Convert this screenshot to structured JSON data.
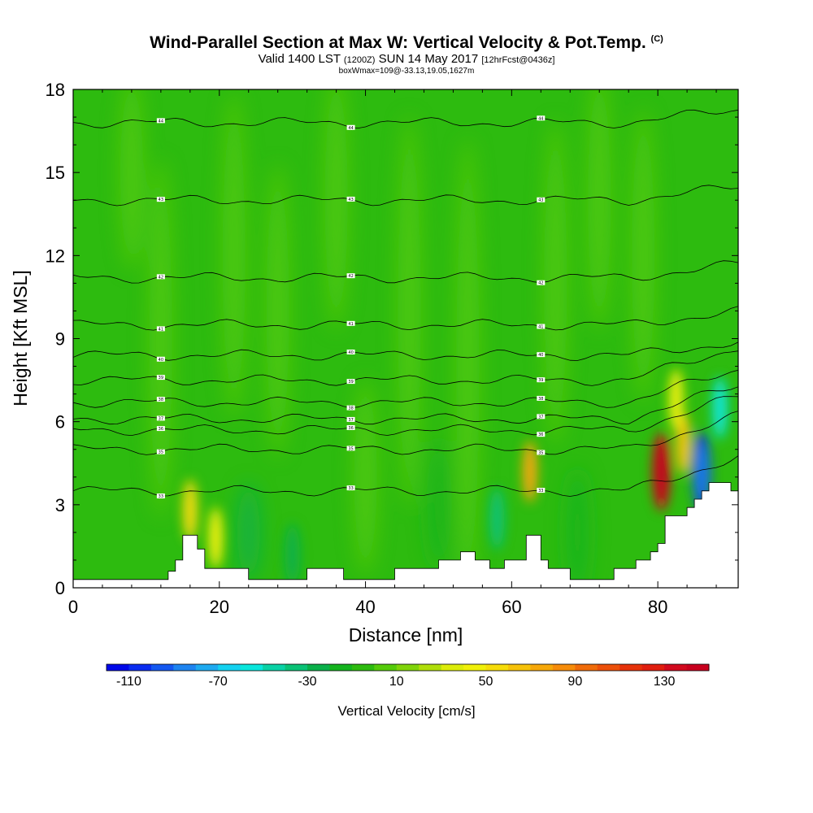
{
  "header": {
    "title": "Wind-Parallel Section at Max W: Vertical Velocity & Pot.Temp.",
    "title_tag": "(C)",
    "subtitle_main_a": "Valid 1400 LST",
    "subtitle_small_a": "(1200Z)",
    "subtitle_main_b": "SUN 14 May 2017",
    "subtitle_small_b": "[12hrFcst@0436z]",
    "line3": "boxWmax=109@-33.13,19.05,1627m"
  },
  "chart_data": {
    "type": "heatmap",
    "xlabel": "Distance [nm]",
    "ylabel": "Height [Kft MSL]",
    "xlim": [
      0,
      91
    ],
    "ylim": [
      0,
      18
    ],
    "x_ticks": [
      0,
      20,
      40,
      60,
      80
    ],
    "y_ticks": [
      0,
      3,
      6,
      9,
      12,
      15,
      18
    ],
    "colorbar": {
      "title": "Vertical Velocity [cm/s]",
      "min": -120,
      "max": 150,
      "step": 10,
      "tick_values": [
        -110,
        -70,
        -30,
        10,
        50,
        90,
        130
      ],
      "colors": [
        "#0008e8",
        "#0a2cf0",
        "#1458f0",
        "#1e84f0",
        "#1eaaf0",
        "#14d2f0",
        "#0ae6dc",
        "#0ad2a6",
        "#0ac276",
        "#0ab04a",
        "#14b41e",
        "#2dbb0f",
        "#55cb0a",
        "#80d40a",
        "#b0de0a",
        "#dcec0a",
        "#f0f00a",
        "#f6dc0a",
        "#f6c20a",
        "#f6a80a",
        "#f68c0a",
        "#f06c0a",
        "#ec500a",
        "#e6320a",
        "#e01e0f",
        "#d20a1e",
        "#c8001e"
      ]
    },
    "terrain_kft": [
      [
        0,
        0.3
      ],
      [
        12,
        0.3
      ],
      [
        13,
        0.3
      ],
      [
        13,
        0.6
      ],
      [
        14,
        0.6
      ],
      [
        14,
        1.0
      ],
      [
        15,
        1.0
      ],
      [
        15,
        1.9
      ],
      [
        17,
        1.9
      ],
      [
        17,
        1.4
      ],
      [
        18,
        1.4
      ],
      [
        18,
        0.7
      ],
      [
        24,
        0.7
      ],
      [
        24,
        0.3
      ],
      [
        32,
        0.3
      ],
      [
        32,
        0.7
      ],
      [
        37,
        0.7
      ],
      [
        37,
        0.3
      ],
      [
        44,
        0.3
      ],
      [
        44,
        0.7
      ],
      [
        50,
        0.7
      ],
      [
        50,
        1.0
      ],
      [
        53,
        1.0
      ],
      [
        53,
        1.3
      ],
      [
        55,
        1.3
      ],
      [
        55,
        1.0
      ],
      [
        57,
        1.0
      ],
      [
        57,
        0.7
      ],
      [
        59,
        0.7
      ],
      [
        59,
        1.0
      ],
      [
        62,
        1.0
      ],
      [
        62,
        1.9
      ],
      [
        64,
        1.9
      ],
      [
        64,
        1.0
      ],
      [
        65,
        1.0
      ],
      [
        65,
        0.7
      ],
      [
        68,
        0.7
      ],
      [
        68,
        0.3
      ],
      [
        74,
        0.3
      ],
      [
        74,
        0.7
      ],
      [
        77,
        0.7
      ],
      [
        77,
        1.0
      ],
      [
        79,
        1.0
      ],
      [
        79,
        1.3
      ],
      [
        80,
        1.3
      ],
      [
        80,
        1.6
      ],
      [
        81,
        1.6
      ],
      [
        81,
        2.6
      ],
      [
        84,
        2.6
      ],
      [
        84,
        2.9
      ],
      [
        85,
        2.9
      ],
      [
        85,
        3.2
      ],
      [
        86,
        3.2
      ],
      [
        86,
        3.5
      ],
      [
        87,
        3.5
      ],
      [
        87,
        3.8
      ],
      [
        90,
        3.8
      ],
      [
        90,
        3.5
      ],
      [
        91,
        3.5
      ]
    ],
    "w_cells": [
      {
        "x": 16,
        "z": 2.8,
        "w": 55
      },
      {
        "x": 19.5,
        "z": 1.8,
        "w": 45
      },
      {
        "x": 30,
        "z": 1.2,
        "w": -25
      },
      {
        "x": 62.5,
        "z": 4.2,
        "w": 70
      },
      {
        "x": 80.5,
        "z": 4.2,
        "w": 130
      },
      {
        "x": 83.5,
        "z": 5.2,
        "w": 60
      },
      {
        "x": 82.5,
        "z": 6.8,
        "w": 40
      },
      {
        "x": 86,
        "z": 4.2,
        "w": -110
      },
      {
        "x": 88.5,
        "z": 6.5,
        "w": -60
      },
      {
        "x": 58,
        "z": 2.5,
        "w": -35
      }
    ],
    "theta_levels": [
      {
        "value": "33",
        "z": 3.5
      },
      {
        "value": "35",
        "z": 5.0
      },
      {
        "value": "36",
        "z": 5.7
      },
      {
        "value": "37",
        "z": 6.1
      },
      {
        "value": "38",
        "z": 6.7
      },
      {
        "value": "39",
        "z": 7.5
      },
      {
        "value": "40",
        "z": 8.4
      },
      {
        "value": "41",
        "z": 9.5
      },
      {
        "value": "42",
        "z": 11.2
      },
      {
        "value": "43",
        "z": 14.0
      },
      {
        "value": "44",
        "z": 16.8
      }
    ]
  }
}
